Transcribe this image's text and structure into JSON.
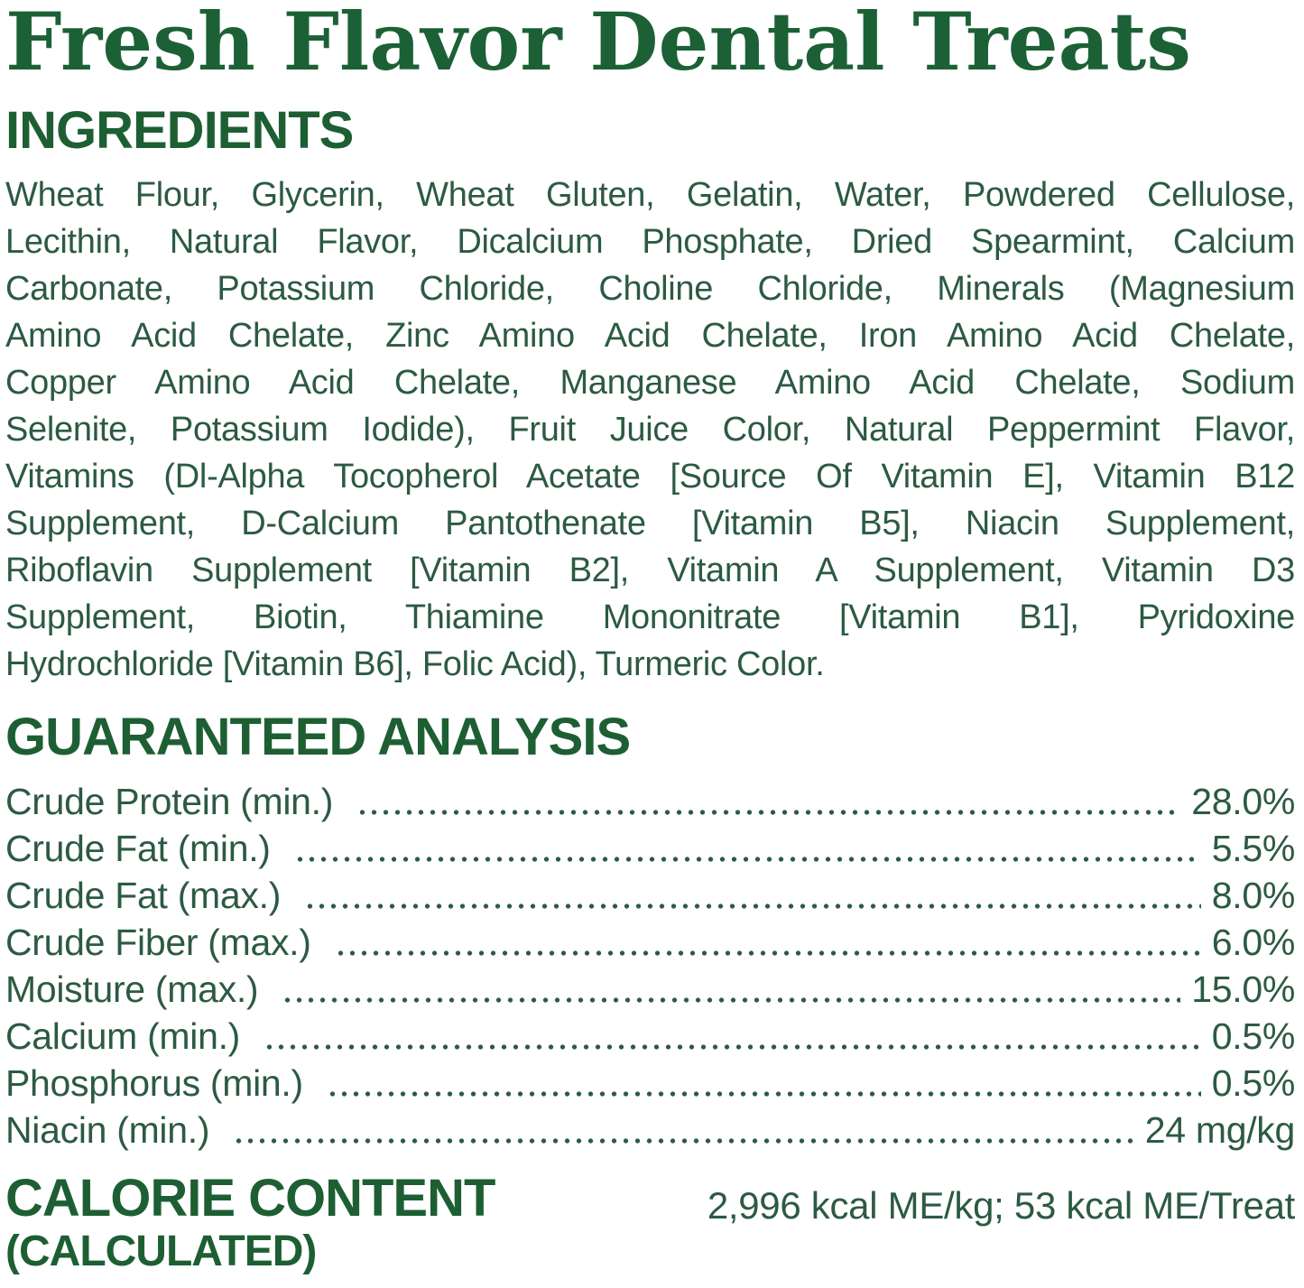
{
  "title": "Fresh Flavor Dental Treats",
  "ingredients": {
    "heading": "INGREDIENTS",
    "lines": [
      "Wheat Flour, Glycerin, Wheat Gluten, Gelatin, Water, Powdered Cellulose,",
      "Lecithin, Natural Flavor, Dicalcium Phosphate, Dried Spearmint, Calcium",
      "Carbonate, Potassium Chloride, Choline Chloride, Minerals (Magnesium",
      "Amino Acid Chelate, Zinc Amino Acid Chelate, Iron Amino Acid Chelate,",
      "Copper Amino Acid Chelate, Manganese Amino Acid Chelate, Sodium",
      "Selenite, Potassium Iodide), Fruit Juice Color, Natural Peppermint Flavor,",
      "Vitamins (Dl-Alpha Tocopherol Acetate [Source Of Vitamin E], Vitamin B12",
      "Supplement, D-Calcium Pantothenate [Vitamin B5], Niacin Supplement,",
      "Riboflavin Supplement [Vitamin B2], Vitamin A Supplement, Vitamin D3",
      "Supplement, Biotin, Thiamine Mononitrate [Vitamin B1], Pyridoxine",
      "Hydrochloride [Vitamin B6], Folic Acid), Turmeric Color."
    ]
  },
  "guaranteed_analysis": {
    "heading": "GUARANTEED ANALYSIS",
    "rows": [
      {
        "label": "Crude Protein (min.)",
        "value": "28.0%"
      },
      {
        "label": "Crude Fat (min.)",
        "value": "5.5%"
      },
      {
        "label": "Crude Fat (max.)",
        "value": "8.0%"
      },
      {
        "label": "Crude Fiber (max.)",
        "value": "6.0%"
      },
      {
        "label": "Moisture (max.)",
        "value": "15.0%"
      },
      {
        "label": "Calcium (min.)",
        "value": "0.5%"
      },
      {
        "label": "Phosphorus (min.)",
        "value": "0.5%"
      },
      {
        "label": "Niacin (min.)",
        "value": "24 mg/kg"
      }
    ]
  },
  "calorie_content": {
    "heading_line1": "CALORIE CONTENT",
    "heading_line2": "(CALCULATED)",
    "value": "2,996 kcal ME/kg; 53 kcal ME/Treat"
  },
  "colors": {
    "heading_green": "#1d5f33",
    "title_green": "#1c6136",
    "body_green": "#2c5a42",
    "background": "#ffffff"
  }
}
